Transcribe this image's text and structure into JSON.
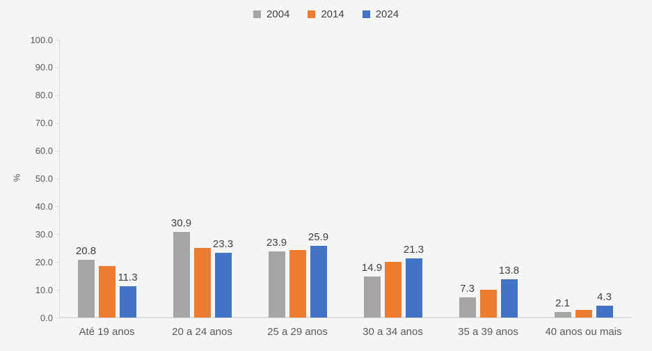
{
  "chart_data": {
    "type": "bar",
    "title": "",
    "categories": [
      "Até 19 anos",
      "20 a 24 anos",
      "25 a 29 anos",
      "30 a 34 anos",
      "35 a 39 anos",
      "40 anos ou mais"
    ],
    "series": [
      {
        "name": "2004",
        "color": "#A5A5A5",
        "values": [
          20.8,
          30.9,
          23.9,
          14.9,
          7.3,
          2.1
        ],
        "value_labels_shown": true,
        "estimated": false
      },
      {
        "name": "2014",
        "color": "#ED7D31",
        "values": [
          18.5,
          25.2,
          24.4,
          20.0,
          10.0,
          2.7
        ],
        "value_labels_shown": false,
        "estimated": true
      },
      {
        "name": "2024",
        "color": "#4472C4",
        "values": [
          11.3,
          23.3,
          25.9,
          21.3,
          13.8,
          4.3
        ],
        "value_labels_shown": true,
        "estimated": false
      }
    ],
    "visible_value_labels": {
      "2004": [
        "20.8",
        "30.9",
        "23.9",
        "14.9",
        "7.3",
        "2.1"
      ],
      "2024": [
        "11.3",
        "23.3",
        "25.9",
        "21.3",
        "13.8",
        "4.3"
      ]
    },
    "xlabel": "",
    "ylabel": "%",
    "ylim": [
      0,
      100
    ],
    "ytick_step": 10,
    "ytick_labels": [
      "0.0",
      "10.0",
      "20.0",
      "30.0",
      "40.0",
      "50.0",
      "60.0",
      "70.0",
      "80.0",
      "90.0",
      "100.0"
    ],
    "legend": {
      "position": "top-center",
      "entries": [
        "2004",
        "2014",
        "2024"
      ]
    },
    "grid": false,
    "colors": {
      "background": "#F4F5F4",
      "axis_line": "#D9D9D9",
      "tick_label": "#595959",
      "data_label": "#404040",
      "category_label": "#595959"
    }
  }
}
